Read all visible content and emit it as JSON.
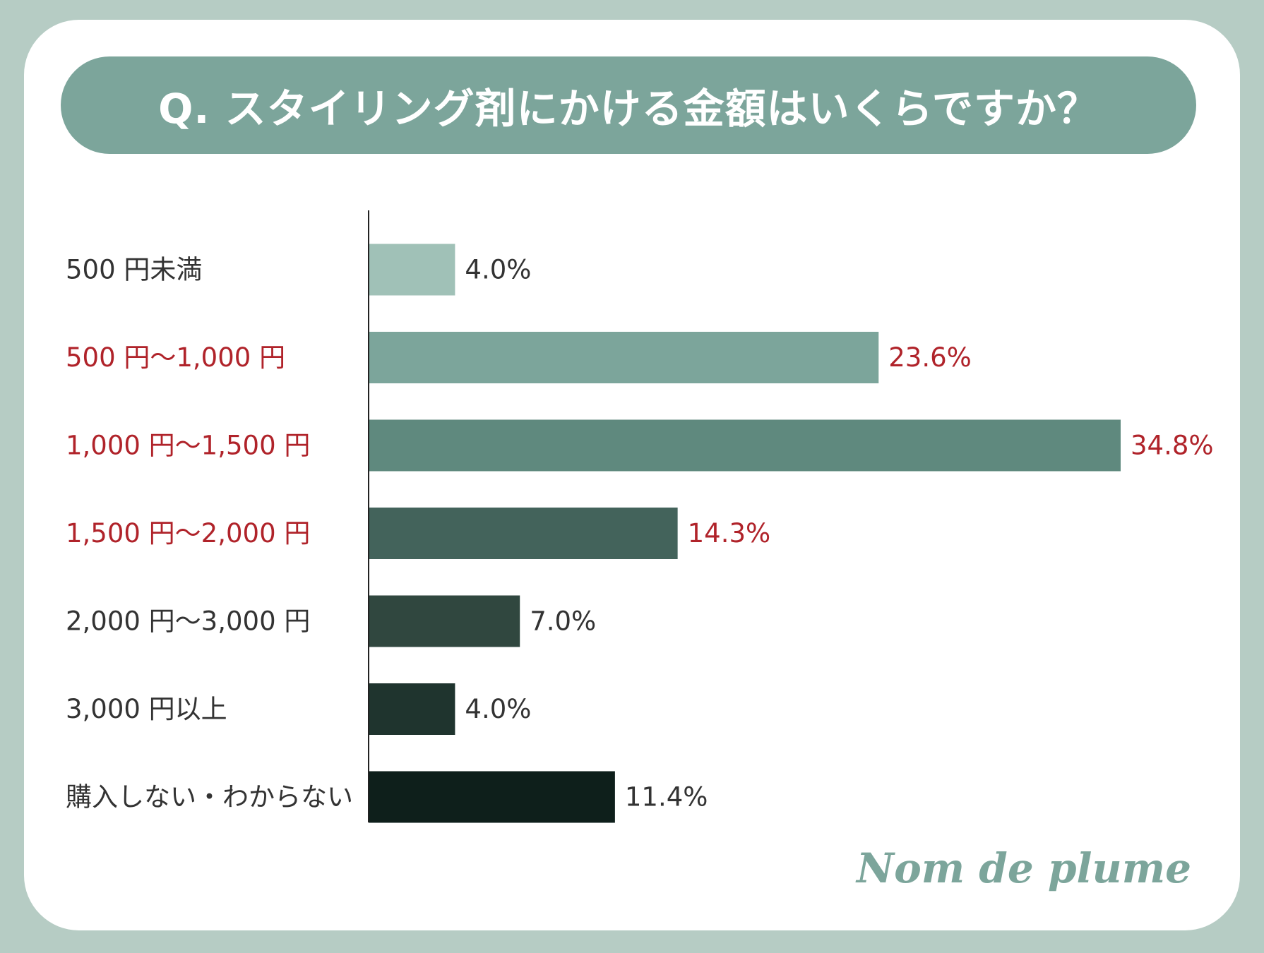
{
  "title": "Q. スタイリング剤にかける金額はいくらですか？",
  "brand": "Nom de plume",
  "colors": {
    "background": "#b6ccc4",
    "title_bar": "#7ca59b",
    "highlight_text": "#b0232a",
    "normal_text": "#333333",
    "axis": "#222222"
  },
  "chart_data": {
    "type": "bar",
    "orientation": "horizontal",
    "title": "Q. スタイリング剤にかける金額はいくらですか？",
    "categories": [
      "500 円未満",
      "500 円〜1,000 円",
      "1,000 円〜1,500 円",
      "1,500 円〜2,000 円",
      "2,000 円〜3,000 円",
      "3,000 円以上",
      "購入しない・わからない"
    ],
    "values": [
      4.0,
      23.6,
      34.8,
      14.3,
      7.0,
      4.0,
      11.4
    ],
    "value_labels": [
      "4.0%",
      "23.6%",
      "34.8%",
      "14.3%",
      "7.0%",
      "4.0%",
      "11.4%"
    ],
    "highlighted": [
      false,
      true,
      true,
      true,
      false,
      false,
      false
    ],
    "bar_colors": [
      "#a0c1b7",
      "#7ca59b",
      "#5f897e",
      "#43635b",
      "#30473f",
      "#1f342e",
      "#0e1f1b"
    ],
    "xlim": [
      0,
      34.8
    ],
    "grid": false,
    "legend": "none"
  }
}
